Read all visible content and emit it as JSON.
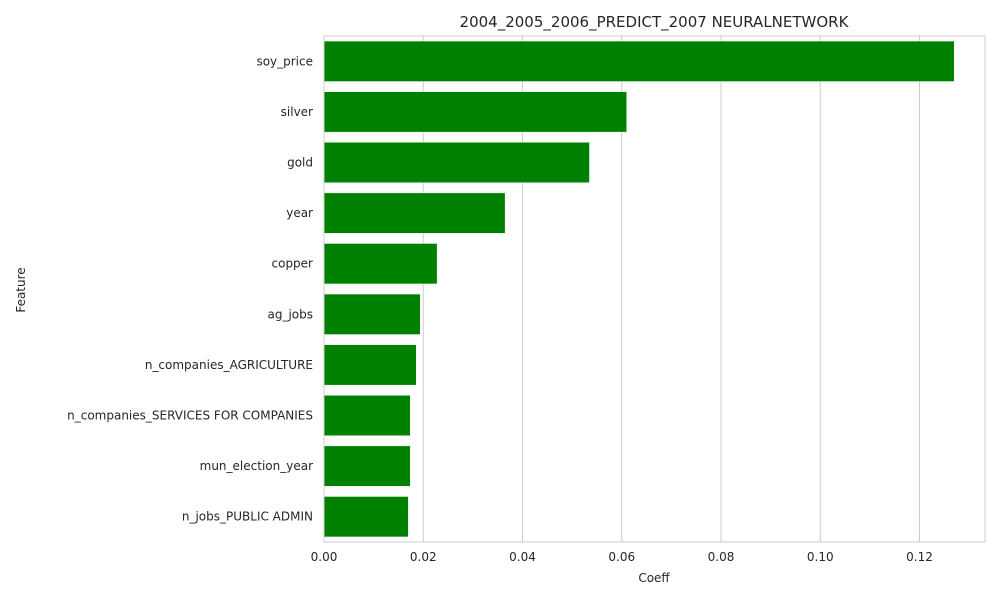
{
  "chart_data": {
    "type": "bar",
    "orientation": "horizontal",
    "title": "2004_2005_2006_PREDICT_2007 NEURALNETWORK",
    "xlabel": "Coeff",
    "ylabel": "Feature",
    "categories": [
      "soy_price",
      "silver",
      "gold",
      "year",
      "copper",
      "ag_jobs",
      "n_companies_AGRICULTURE",
      "n_companies_SERVICES FOR COMPANIES",
      "mun_election_year",
      "n_jobs_PUBLIC ADMIN"
    ],
    "values": [
      0.127,
      0.061,
      0.0535,
      0.0365,
      0.0228,
      0.0194,
      0.0186,
      0.0174,
      0.0174,
      0.017
    ],
    "xlim": [
      0,
      0.1332
    ],
    "xticks": [
      0.0,
      0.02,
      0.04,
      0.06,
      0.08,
      0.1,
      0.12
    ],
    "xtick_labels": [
      "0.00",
      "0.02",
      "0.04",
      "0.06",
      "0.08",
      "0.10",
      "0.12"
    ],
    "grid": true,
    "bar_color": "#008000",
    "grid_color": "#cccccc",
    "axis_color": "#cccccc",
    "text_color": "#262626"
  }
}
